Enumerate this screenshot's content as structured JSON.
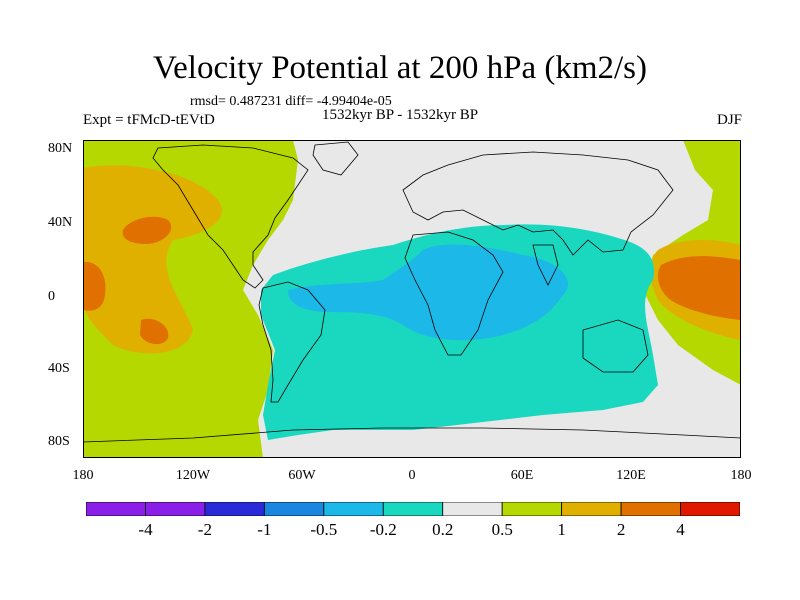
{
  "title": "Velocity Potential at 200 hPa (km2/s)",
  "stats_line": "rmsd= 0.487231 diff= -4.99404e-05",
  "period": "1532kyr BP - 1532kyr BP",
  "experiment": "Expt = tFMcD-tEVtD",
  "season": "DJF",
  "y_ticks": [
    "80N",
    "40N",
    "0",
    "40S",
    "80S"
  ],
  "x_ticks": [
    "180",
    "120W",
    "60W",
    "0",
    "60E",
    "120E",
    "180"
  ],
  "colorbar": {
    "labels": [
      "-4",
      "-2",
      "-1",
      "-0.5",
      "-0.2",
      "0.2",
      "0.5",
      "1",
      "2",
      "4"
    ],
    "colors": [
      "#8a1fe8",
      "#2a2ad8",
      "#1a86e0",
      "#1cb8e8",
      "#1ad8c0",
      "#e8e8e8",
      "#b4d800",
      "#e0b000",
      "#e07000",
      "#e01800"
    ]
  },
  "field_colors": {
    "neutral": "#e8e8e8",
    "pos_weak": "#b4d800",
    "pos_mid": "#e0b000",
    "pos_strong": "#e07000",
    "neg_weak": "#1ad8c0",
    "neg_mid": "#1cb8e8"
  }
}
